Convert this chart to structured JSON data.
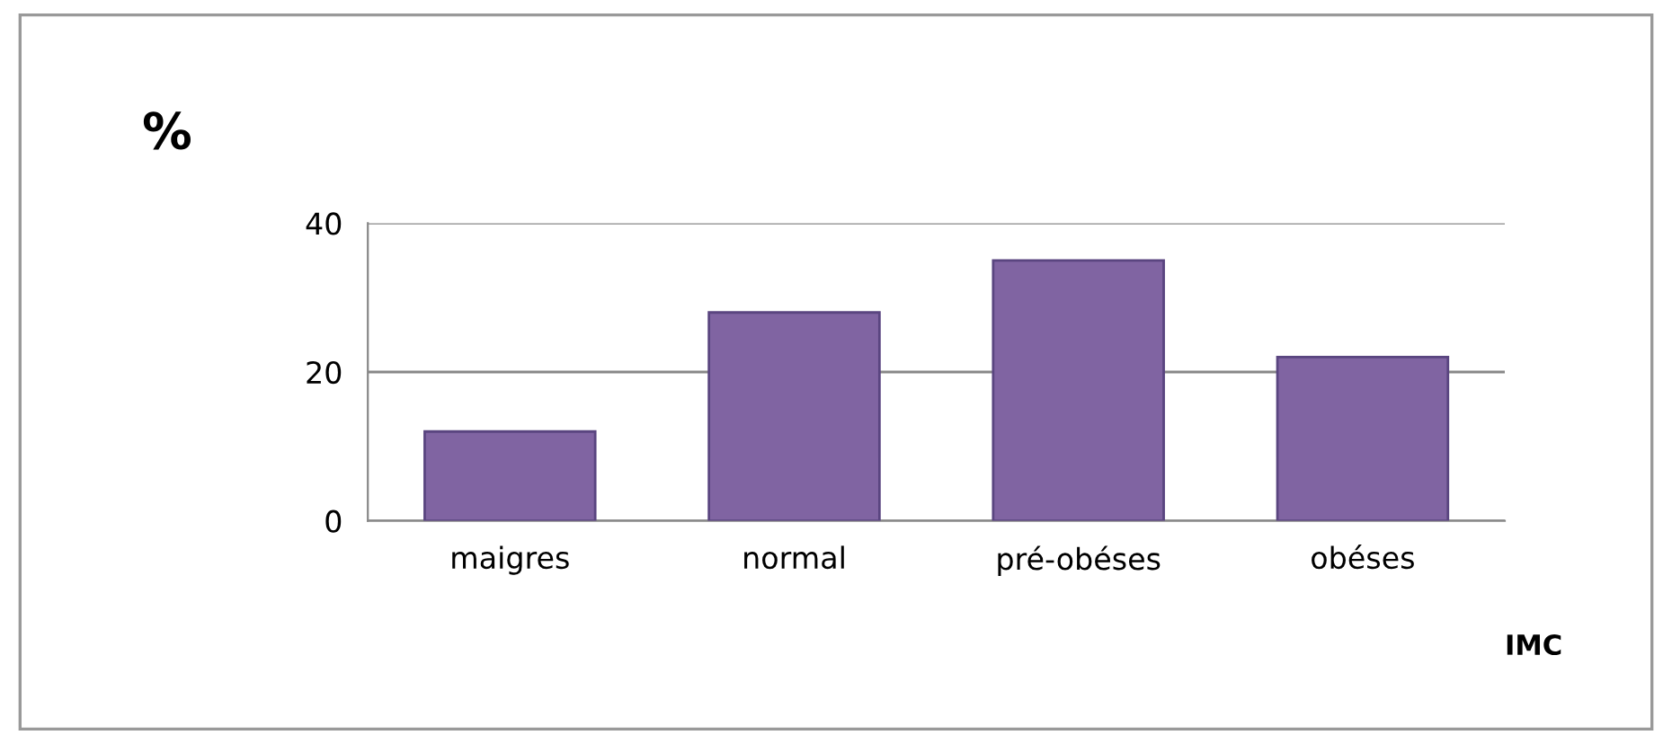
{
  "chart_data": {
    "type": "bar",
    "title": "%",
    "xlabel": "IMC",
    "categories": [
      "maigres",
      "normal",
      "pré-obéses",
      "obéses"
    ],
    "values": [
      12,
      28,
      35,
      22
    ],
    "color": "#8064a2",
    "ylim": [
      0,
      40
    ],
    "yticks": [
      0,
      20,
      40
    ],
    "grid": "y"
  }
}
